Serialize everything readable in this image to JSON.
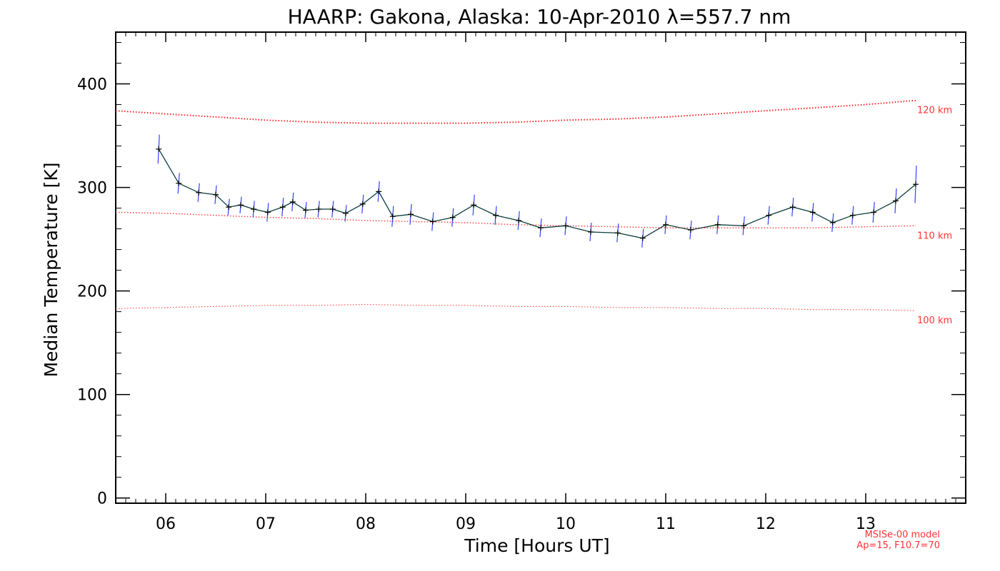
{
  "chart_data": {
    "type": "line",
    "title": "HAARP: Gakona,  Alaska: 10-Apr-2010 λ=557.7 nm",
    "xlabel": "Time [Hours UT]",
    "ylabel": "Median Temperature [K]",
    "xlim": [
      5.5,
      14.0
    ],
    "ylim": [
      -5,
      450
    ],
    "xticks": [
      6,
      7,
      8,
      9,
      10,
      11,
      12,
      13
    ],
    "xtick_labels": [
      "06",
      "07",
      "08",
      "09",
      "10",
      "11",
      "12",
      "13"
    ],
    "yticks": [
      0,
      100,
      200,
      300,
      400
    ],
    "ytick_labels": [
      "0",
      "100",
      "200",
      "300",
      "400"
    ],
    "grid": false,
    "series": [
      {
        "role": "measurement",
        "color": "#0b3d3d",
        "errorbar_color": "#3344ff",
        "x": [
          5.93,
          6.13,
          6.33,
          6.5,
          6.63,
          6.75,
          6.88,
          7.02,
          7.17,
          7.27,
          7.4,
          7.53,
          7.67,
          7.8,
          7.97,
          8.13,
          8.27,
          8.45,
          8.67,
          8.87,
          9.08,
          9.3,
          9.53,
          9.75,
          10.0,
          10.25,
          10.52,
          10.77,
          11.0,
          11.25,
          11.52,
          11.78,
          12.03,
          12.27,
          12.47,
          12.67,
          12.87,
          13.08,
          13.3,
          13.5
        ],
        "y": [
          337,
          304,
          295,
          293,
          281,
          283,
          279,
          276,
          281,
          286,
          278,
          279,
          279,
          275,
          284,
          296,
          272,
          274,
          267,
          271,
          283,
          273,
          268,
          261,
          263,
          257,
          256,
          251,
          264,
          259,
          264,
          263,
          273,
          281,
          276,
          266,
          273,
          276,
          287,
          303
        ],
        "err": [
          14,
          10,
          9,
          9,
          8,
          8,
          8,
          9,
          9,
          9,
          8,
          8,
          8,
          8,
          9,
          10,
          10,
          10,
          9,
          9,
          10,
          9,
          9,
          9,
          9,
          9,
          9,
          9,
          9,
          9,
          9,
          9,
          9,
          9,
          9,
          9,
          9,
          10,
          12,
          18
        ]
      },
      {
        "role": "model",
        "name": "120 km",
        "color": "#ff2020",
        "x": [
          5.5,
          6.0,
          6.5,
          7.0,
          7.5,
          8.0,
          8.5,
          9.0,
          9.5,
          10.0,
          10.5,
          11.0,
          11.5,
          12.0,
          12.5,
          13.0,
          13.5
        ],
        "y": [
          374,
          371,
          368,
          365,
          363,
          362,
          362,
          362,
          363,
          365,
          366,
          368,
          371,
          374,
          377,
          380,
          384
        ]
      },
      {
        "role": "model",
        "name": "110 km",
        "color": "#ff4040",
        "x": [
          5.5,
          6.0,
          6.5,
          7.0,
          7.5,
          8.0,
          8.5,
          9.0,
          9.5,
          10.0,
          10.5,
          11.0,
          11.5,
          12.0,
          12.5,
          13.0,
          13.5
        ],
        "y": [
          276,
          275,
          273,
          271,
          270,
          268,
          267,
          266,
          264,
          263,
          262,
          261,
          261,
          261,
          261,
          262,
          263
        ]
      },
      {
        "role": "model",
        "name": "100 km",
        "color": "#ff5050",
        "x": [
          5.5,
          6.0,
          6.5,
          7.0,
          7.5,
          8.0,
          8.5,
          9.0,
          9.5,
          10.0,
          10.5,
          11.0,
          11.5,
          12.0,
          12.5,
          13.0,
          13.5
        ],
        "y": [
          183,
          184,
          185,
          186,
          186,
          187,
          186,
          186,
          185,
          185,
          184,
          184,
          183,
          183,
          182,
          182,
          181
        ]
      }
    ],
    "model_note_line1": "MSISe-00 model",
    "model_note_line2": "Ap=15, F10.7=70"
  }
}
